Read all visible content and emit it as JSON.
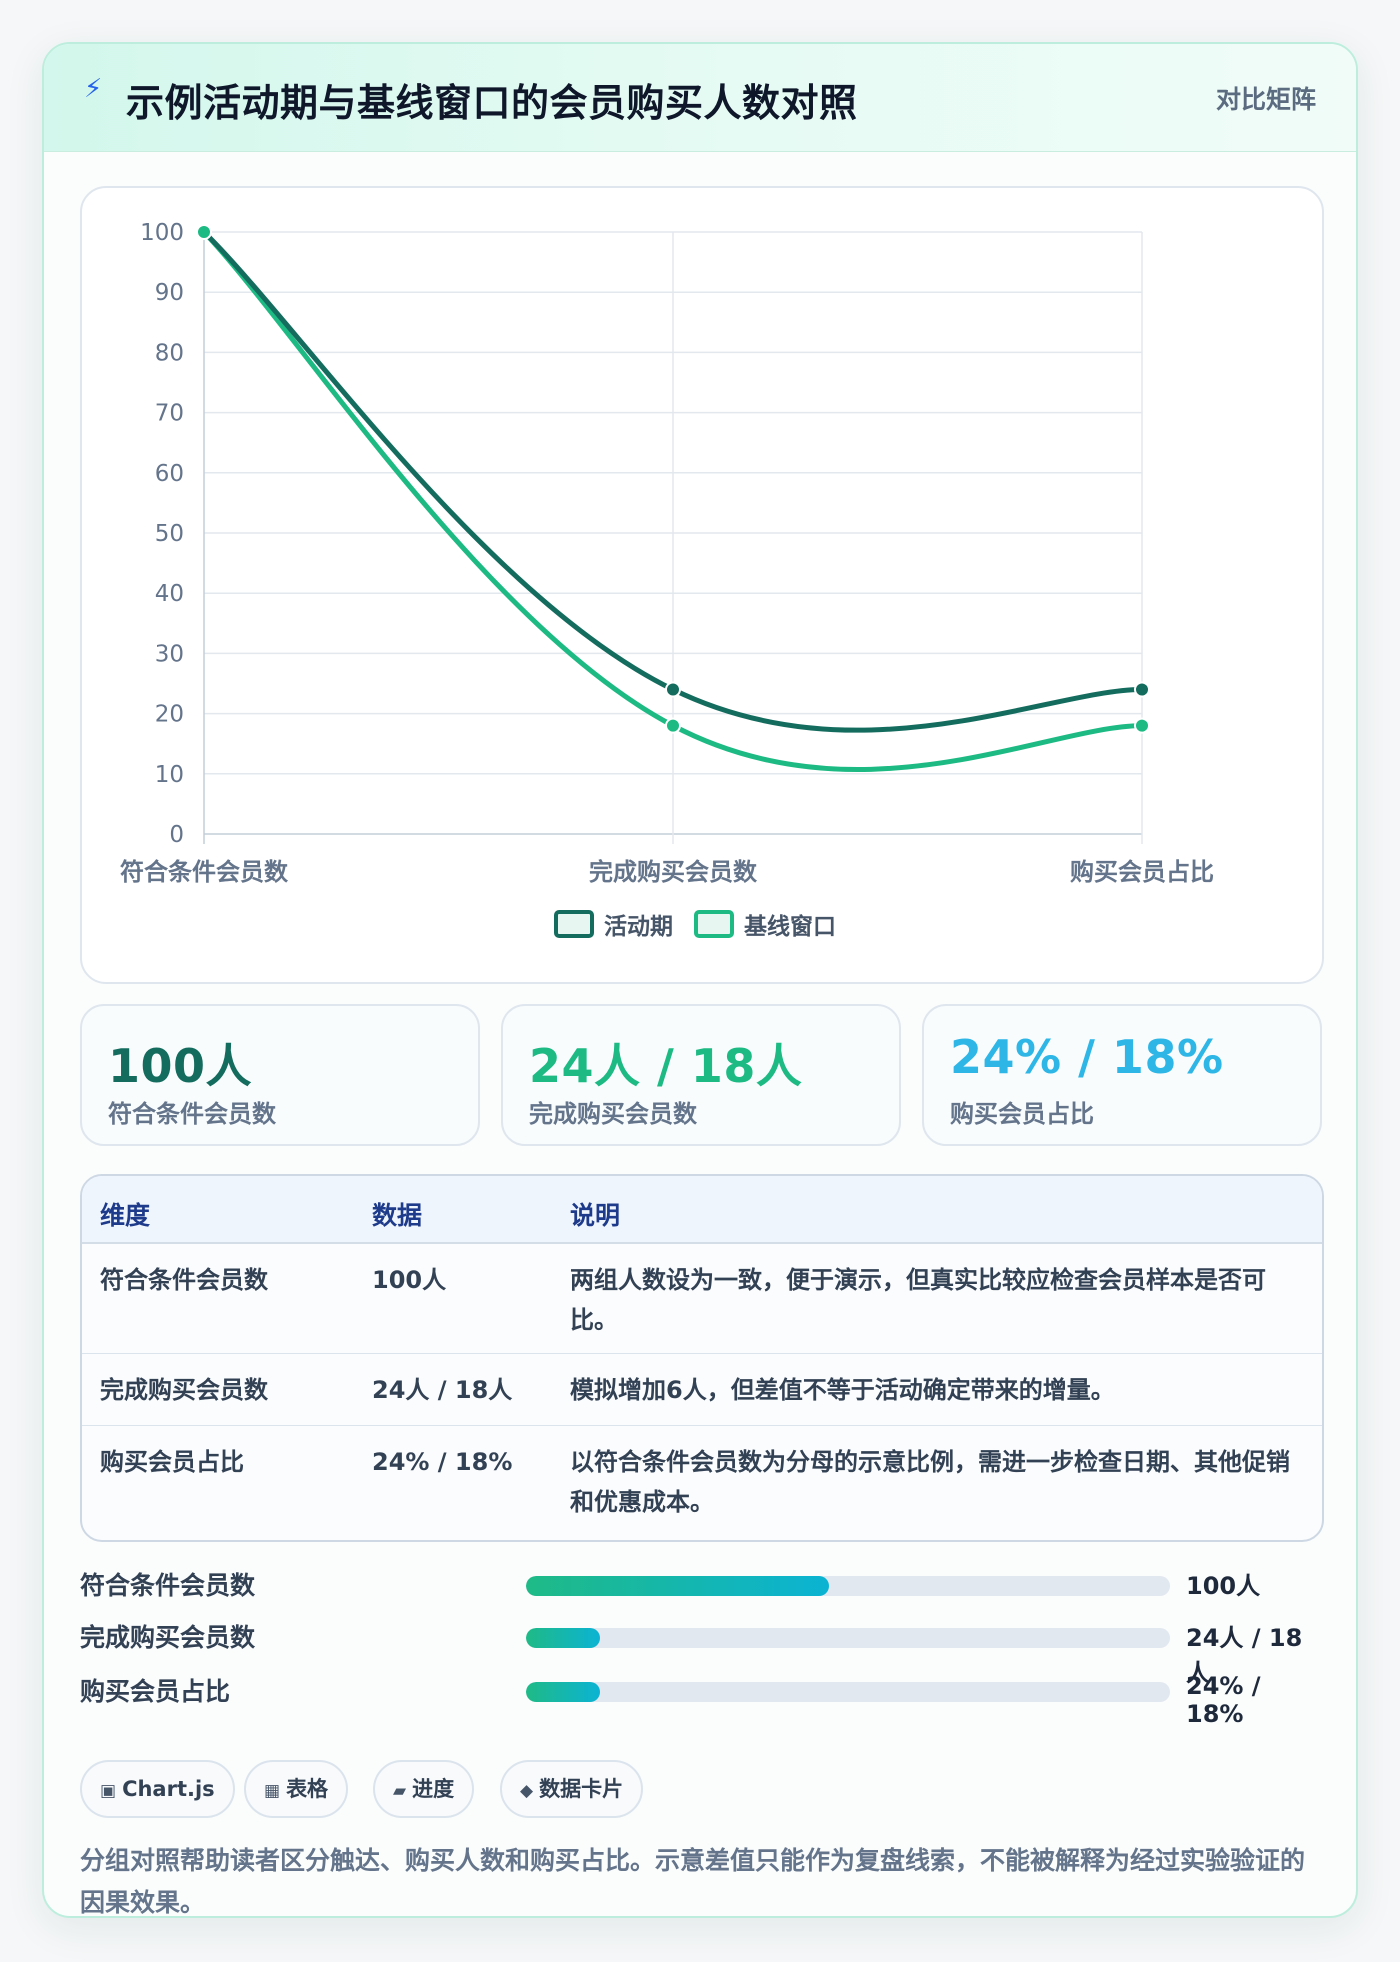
{
  "header": {
    "icon": "bolt-icon",
    "title": "示例活动期与基线窗口的会员购买人数对照",
    "tag": "对比矩阵"
  },
  "chart_data": {
    "type": "line",
    "categories": [
      "符合条件会员数",
      "完成购买会员数",
      "购买会员占比"
    ],
    "series": [
      {
        "name": "活动期",
        "values": [
          100,
          24,
          24
        ],
        "color": "#146c5e"
      },
      {
        "name": "基线窗口",
        "values": [
          100,
          18,
          18
        ],
        "color": "#1dba84"
      }
    ],
    "yticks": [
      "0",
      "10",
      "20",
      "30",
      "40",
      "50",
      "60",
      "70",
      "80",
      "90",
      "100"
    ],
    "ylim": [
      0,
      100
    ],
    "grid": true,
    "legend_position": "bottom"
  },
  "stats": [
    {
      "value": "100人",
      "label": "符合条件会员数",
      "color": "#146c5e"
    },
    {
      "value": "24人 / 18人",
      "label": "完成购买会员数",
      "color": "#1dba84"
    },
    {
      "value": "24% / 18%",
      "label": "购买会员占比",
      "color": "#2eb6e6"
    }
  ],
  "table": {
    "headers": [
      "维度",
      "数据",
      "说明"
    ],
    "rows": [
      {
        "dim": "符合条件会员数",
        "data": "100人",
        "desc": "两组人数设为一致，便于演示，但真实比较应检查会员样本是否可比。"
      },
      {
        "dim": "完成购买会员数",
        "data": "24人 / 18人",
        "desc": "模拟增加6人，但差值不等于活动确定带来的增量。"
      },
      {
        "dim": "购买会员占比",
        "data": "24% / 18%",
        "desc": "以符合条件会员数为分母的示意比例，需进一步检查日期、其他促销和优惠成本。"
      }
    ]
  },
  "progress": [
    {
      "label": "符合条件会员数",
      "amount": "100人",
      "fraction": 0.47
    },
    {
      "label": "完成购买会员数",
      "amount": "24人 / 18人",
      "fraction": 0.115
    },
    {
      "label": "购买会员占比",
      "amount": "24% / 18%",
      "fraction": 0.115
    }
  ],
  "chips": [
    {
      "icon": "▣",
      "label": "Chart.js"
    },
    {
      "icon": "▦",
      "label": "表格"
    },
    {
      "icon": "▰",
      "label": "进度"
    },
    {
      "icon": "◆",
      "label": "数据卡片"
    }
  ],
  "note": "分组对照帮助读者区分触达、购买人数和购买占比。示意差值只能作为复盘线索，不能被解释为经过实验验证的因果效果。"
}
